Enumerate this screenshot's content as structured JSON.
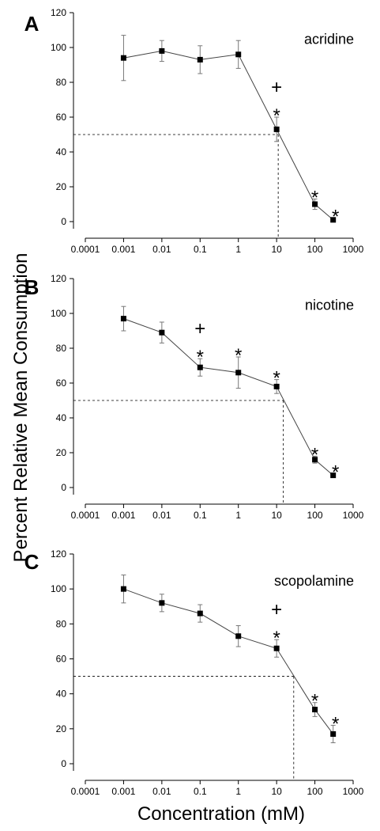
{
  "ylabel": "Percent Relative Mean Consumption",
  "xlabel": "Concentration (mM)",
  "chart_data": [
    {
      "type": "line",
      "letter": "A",
      "title": "acridine",
      "xscale": "log",
      "xlim": [
        0.0001,
        1000
      ],
      "ylim": [
        0,
        120
      ],
      "x_tick_labels": [
        "0.0001",
        "0.001",
        "0.01",
        "0.1",
        "1",
        "10",
        "100",
        "1000"
      ],
      "y_tick_labels": [
        "0",
        "20",
        "40",
        "60",
        "80",
        "100",
        "120"
      ],
      "x": [
        0.001,
        0.01,
        0.1,
        1,
        10,
        100,
        300
      ],
      "y": [
        94,
        98,
        93,
        96,
        53,
        10,
        1
      ],
      "error": [
        13,
        6,
        8,
        8,
        7,
        3,
        1
      ],
      "ec50": {
        "x": 11,
        "y": 50
      },
      "significance": [
        {
          "x": 10,
          "marks": [
            "+",
            "*"
          ]
        },
        {
          "x": 100,
          "marks": [
            "*"
          ]
        },
        {
          "x": 300,
          "marks": [
            "*"
          ]
        }
      ]
    },
    {
      "type": "line",
      "letter": "B",
      "title": "nicotine",
      "xscale": "log",
      "xlim": [
        0.0001,
        1000
      ],
      "ylim": [
        0,
        120
      ],
      "x_tick_labels": [
        "0.0001",
        "0.001",
        "0.01",
        "0.1",
        "1",
        "10",
        "100",
        "1000"
      ],
      "y_tick_labels": [
        "0",
        "20",
        "40",
        "60",
        "80",
        "100",
        "120"
      ],
      "x": [
        0.001,
        0.01,
        0.1,
        1,
        10,
        100,
        300
      ],
      "y": [
        97,
        89,
        69,
        66,
        58,
        16,
        7
      ],
      "error": [
        7,
        6,
        5,
        9,
        4,
        2,
        1
      ],
      "ec50": {
        "x": 15,
        "y": 50
      },
      "significance": [
        {
          "x": 0.1,
          "marks": [
            "+",
            "*"
          ]
        },
        {
          "x": 1,
          "marks": [
            "*"
          ]
        },
        {
          "x": 10,
          "marks": [
            "*"
          ]
        },
        {
          "x": 100,
          "marks": [
            "*"
          ]
        },
        {
          "x": 300,
          "marks": [
            "*"
          ]
        }
      ]
    },
    {
      "type": "line",
      "letter": "C",
      "title": "scopolamine",
      "xscale": "log",
      "xlim": [
        0.0001,
        1000
      ],
      "ylim": [
        0,
        120
      ],
      "x_tick_labels": [
        "0.0001",
        "0.001",
        "0.01",
        "0.1",
        "1",
        "10",
        "100",
        "1000"
      ],
      "y_tick_labels": [
        "0",
        "20",
        "40",
        "60",
        "80",
        "100",
        "120"
      ],
      "x": [
        0.001,
        0.01,
        0.1,
        1,
        10,
        100,
        300
      ],
      "y": [
        100,
        92,
        86,
        73,
        66,
        31,
        17
      ],
      "error": [
        8,
        5,
        5,
        6,
        5,
        4,
        5
      ],
      "ec50": {
        "x": 28,
        "y": 50
      },
      "significance": [
        {
          "x": 10,
          "marks": [
            "+",
            "*"
          ]
        },
        {
          "x": 100,
          "marks": [
            "*"
          ]
        },
        {
          "x": 300,
          "marks": [
            "*"
          ]
        }
      ]
    }
  ]
}
